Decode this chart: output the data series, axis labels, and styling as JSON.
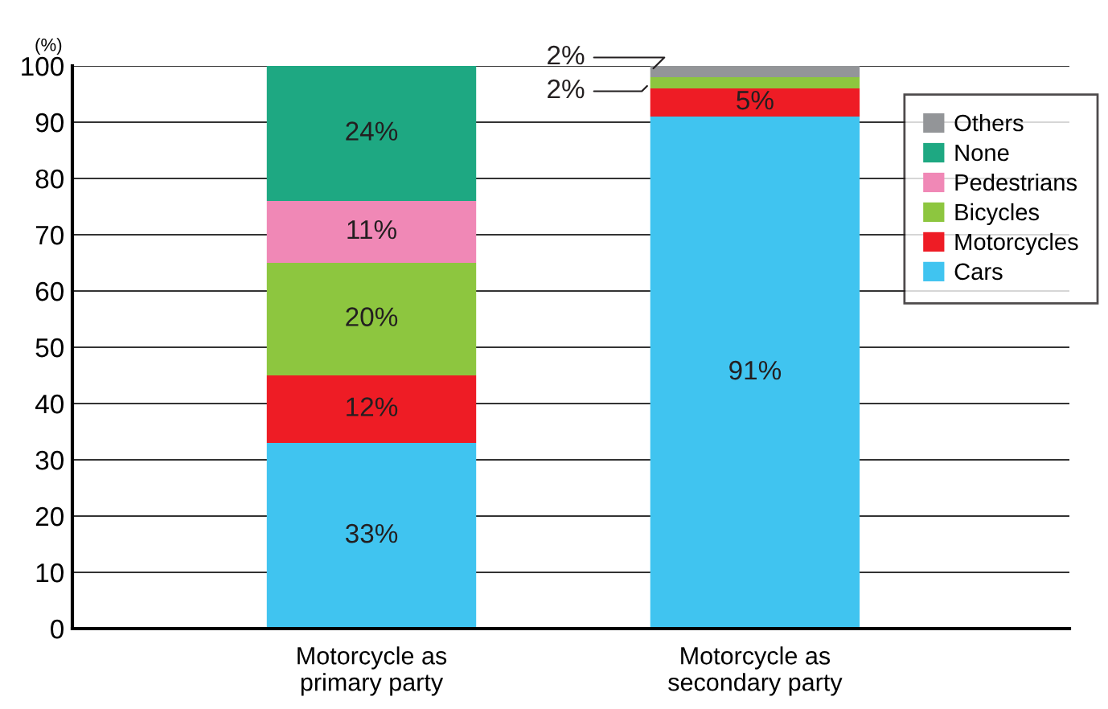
{
  "chart_data": {
    "type": "bar",
    "stacked": true,
    "ylabel": "(%)",
    "categories": [
      "Motorcycle as\nprimary party",
      "Motorcycle as\nsecondary party"
    ],
    "ylim": [
      0,
      100
    ],
    "yticks": [
      0,
      10,
      20,
      30,
      40,
      50,
      60,
      70,
      80,
      90,
      100
    ],
    "grid": "y",
    "legend": "right",
    "series": [
      {
        "name": "Cars",
        "color": "#40c4f0",
        "values": [
          33,
          91
        ],
        "value_labels": [
          "33%",
          "91%"
        ]
      },
      {
        "name": "Motorcycles",
        "color": "#ee1c25",
        "values": [
          12,
          5
        ],
        "value_labels": [
          "12%",
          "5%"
        ]
      },
      {
        "name": "Bicycles",
        "color": "#8dc63f",
        "values": [
          20,
          2
        ],
        "value_labels": [
          "20%",
          "2%"
        ]
      },
      {
        "name": "Pedestrians",
        "color": "#f088b6",
        "values": [
          11,
          0
        ],
        "value_labels": [
          "11%",
          null
        ]
      },
      {
        "name": "None",
        "color": "#1ea882",
        "values": [
          24,
          0
        ],
        "value_labels": [
          "24%",
          null
        ]
      },
      {
        "name": "Others",
        "color": "#939598",
        "values": [
          0,
          2
        ],
        "value_labels": [
          null,
          "2%"
        ]
      }
    ]
  }
}
